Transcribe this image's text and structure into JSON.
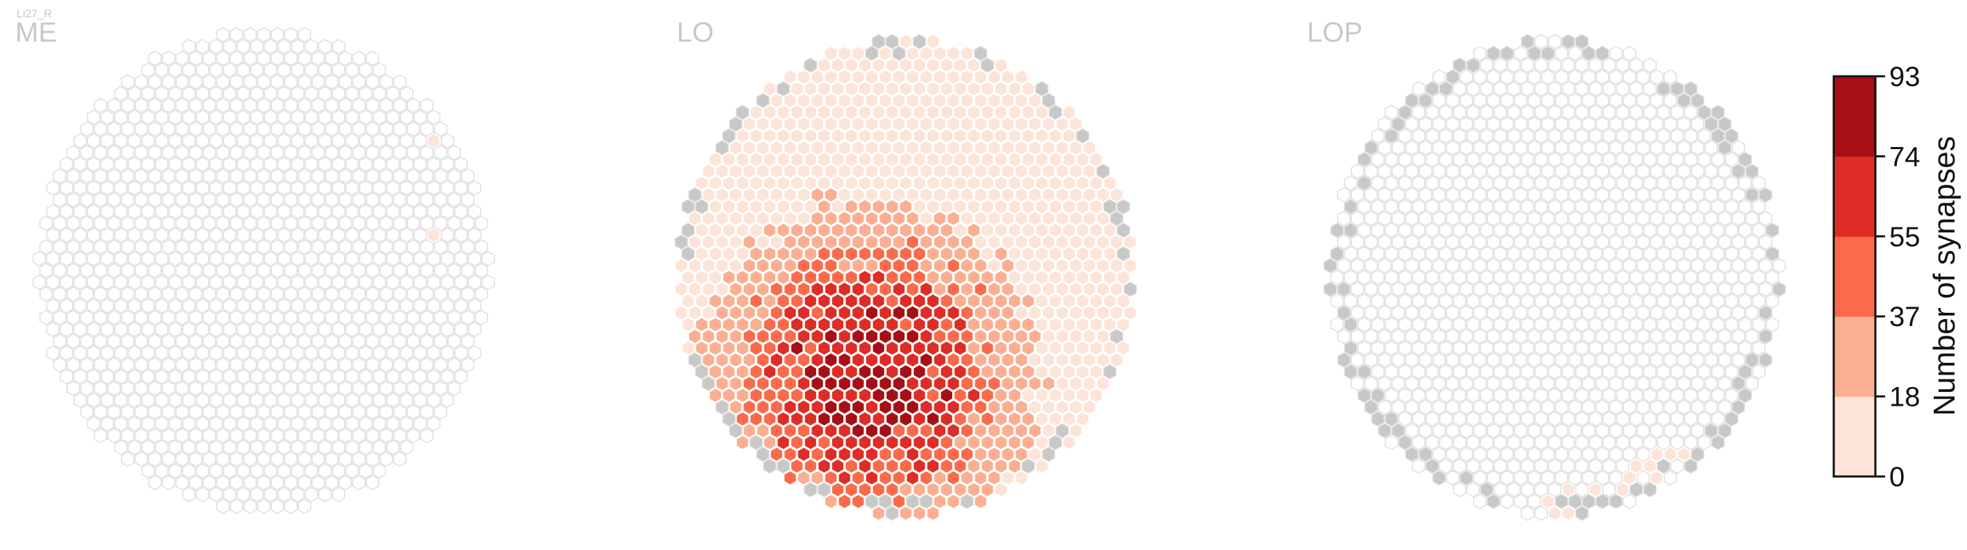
{
  "figure_label": "Li27_R",
  "chart_data": {
    "type": "heatmap",
    "layout": "hexagonal column maps",
    "panels": [
      {
        "name": "ME",
        "grid_rows": 34,
        "grid_cols": 34,
        "counts_summary": "nearly all 0; two isolated columns with low counts (1-17) on the right edge",
        "hotspots": [
          {
            "value": 10
          },
          {
            "value": 8
          }
        ]
      },
      {
        "name": "LO",
        "grid_rows": 34,
        "grid_cols": 34,
        "counts_summary": "low counts (0-18) in upper half, rising to 55-93 in lower-center; grey columns on outer rim have no data",
        "peak_value": 93
      },
      {
        "name": "LOP",
        "grid_rows": 34,
        "grid_cols": 34,
        "counts_summary": "nearly all 0; a band of low counts (1-18) along the lower rim; grey columns on outer rim have no data"
      }
    ],
    "colorbar": {
      "label": "Number of synapses",
      "ticks": [
        "0",
        "18",
        "37",
        "55",
        "74",
        "93"
      ],
      "range": [
        0,
        93
      ],
      "colors": [
        "#fde4d8",
        "#fcae91",
        "#fb6a4a",
        "#de2d26",
        "#a50f15"
      ]
    },
    "empty_color": "#ffffff",
    "empty_stroke": "#dcdcdc",
    "nodata_color": "#c8c8c8"
  }
}
